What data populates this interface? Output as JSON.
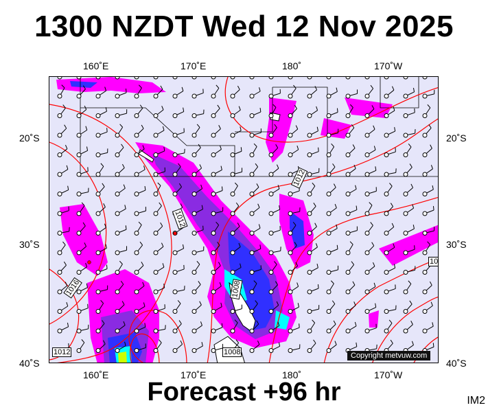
{
  "title": "1300 NZDT Wed 12 Nov 2025",
  "footer": "Forecast +96 hr",
  "tag": "IM2",
  "copyright": "Copyright metvuw.com",
  "axes": {
    "lon_top": [
      "160˚E",
      "170˚E",
      "180˚",
      "170˚W"
    ],
    "lon_bottom": [
      "160˚E",
      "170˚E",
      "180˚",
      "170˚W"
    ],
    "lat_left": [
      "20˚S",
      "30˚S",
      "40˚S"
    ],
    "lat_right": [
      "20˚S",
      "30˚S",
      "40˚S"
    ]
  },
  "isobar_labels": [
    "1012",
    "1012",
    "1016",
    "1008",
    "1008",
    "1012",
    "10"
  ],
  "colors": {
    "ocean": "#e6e6fa",
    "isobar": "#ff0000",
    "rain_light": "#ff00ff",
    "rain_mid": "#8a2be2",
    "rain_heavy": "#3030ff",
    "rain_very_heavy": "#00ffff",
    "rain_extreme": "#ccff00",
    "land": "#ffffff"
  },
  "icons": [
    "wind-barb-icon",
    "station-marker-icon"
  ]
}
